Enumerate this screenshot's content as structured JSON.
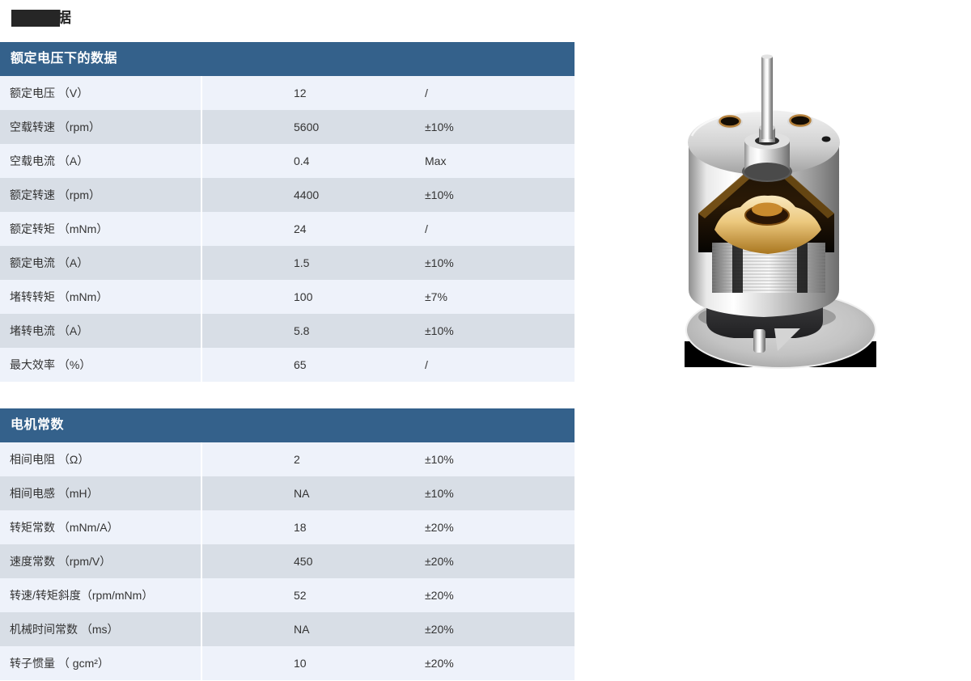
{
  "page": {
    "badge_text": "据"
  },
  "theme": {
    "header_bg": "#34618B",
    "header_text": "#FFFFFF",
    "row_light": "#EEF2FA",
    "row_dark": "#D8DEE6",
    "cell_text": "#333333",
    "badge_box_color": "#262626"
  },
  "tables": [
    {
      "title": "额定电压下的数据",
      "rows": [
        {
          "label": "额定电压 （V）",
          "value": "12",
          "tol": "/"
        },
        {
          "label": "空载转速 （rpm）",
          "value": "5600",
          "tol": "±10%"
        },
        {
          "label": "空载电流 （A）",
          "value": "0.4",
          "tol": "Max"
        },
        {
          "label": "额定转速 （rpm）",
          "value": "4400",
          "tol": "±10%"
        },
        {
          "label": "额定转矩 （mNm）",
          "value": "24",
          "tol": "/"
        },
        {
          "label": "额定电流 （A）",
          "value": "1.5",
          "tol": "±10%"
        },
        {
          "label": "堵转转矩 （mNm）",
          "value": "100",
          "tol": "±7%"
        },
        {
          "label": "堵转电流 （A）",
          "value": "5.8",
          "tol": "±10%"
        },
        {
          "label": "最大效率 （%）",
          "value": "65",
          "tol": "/"
        }
      ]
    },
    {
      "title": "电机常数",
      "rows": [
        {
          "label": "相间电阻 （Ω）",
          "value": "2",
          "tol": "±10%"
        },
        {
          "label": "相间电感 （mH）",
          "value": "NA",
          "tol": "±10%"
        },
        {
          "label": "转矩常数 （mNm/A）",
          "value": "18",
          "tol": "±20%"
        },
        {
          "label": "速度常数 （rpm/V）",
          "value": "450",
          "tol": "±20%"
        },
        {
          "label": "转速/转矩斜度（rpm/mNm）",
          "value": "52",
          "tol": "±20%"
        },
        {
          "label": "机械时间常数 （ms）",
          "value": "NA",
          "tol": "±20%"
        },
        {
          "label": "转子惯量 （ gcm²）",
          "value": "10",
          "tol": "±20%"
        }
      ]
    }
  ],
  "motor_image": {
    "name": "motor-cutaway-photo"
  }
}
